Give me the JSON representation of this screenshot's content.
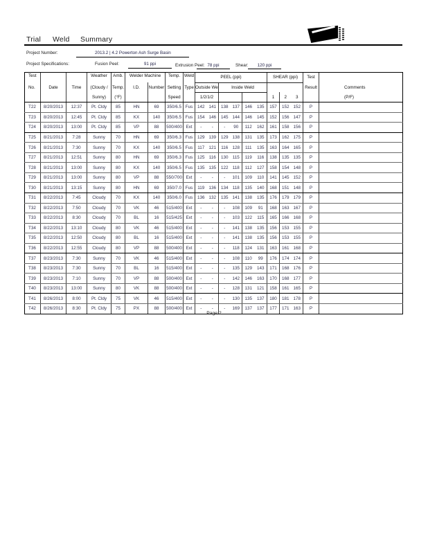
{
  "colors": {
    "ink": "#111111",
    "data_ink": "#30304f",
    "line": "#000000"
  },
  "report": {
    "title_words": [
      "Trial",
      "Weld",
      "Summary"
    ],
    "page_number": "Page 2"
  },
  "project": {
    "number_label": "Project Number:",
    "number_value": "2013.2 | 4.2 Powerton Ash Surge Basin",
    "specs_label": "Project Specifications:",
    "fusion_peel_label": "Fusion Peel:",
    "fusion_peel_value": "91 ppi",
    "extrusion_peel_label": "Extrusion Peel:",
    "extrusion_peel_value": "78 ppi",
    "shear_label": "Shear:",
    "shear_value": "120 ppi"
  },
  "table": {
    "header": {
      "r1": {
        "test": "Test",
        "weather": "Weather",
        "amb": "Amb.",
        "welder_machine": "Welder Machine",
        "temp": "Temp.",
        "weld": "Weld",
        "peel": "PEEL (ppi)",
        "shear": "SHEAR (ppi)",
        "test_result": "Test"
      },
      "r2": {
        "no": "No.",
        "date": "Date",
        "time": "Time",
        "weather": "(Cloudy /",
        "temp": "Temp.",
        "id": "I.D.",
        "number": "Number",
        "setting": "Setting",
        "type": "Type",
        "outside": "Outside Weld",
        "inside": "Inside Weld",
        "result": "Result",
        "comments": "Comments"
      },
      "r3": {
        "weather": "Sunny)",
        "f": "(°F)",
        "speed": "Speed",
        "peel_sub": "1/2/1/2",
        "s1": "1",
        "s2": "2",
        "s3": "3",
        "pf": "(P/F)"
      }
    },
    "columns": [
      "Test No.",
      "Date",
      "Time",
      "Weather",
      "Amb. Temp (°F)",
      "Welder I.D.",
      "Number",
      "Temp. Setting Speed",
      "Weld Type",
      "Peel Outside 1",
      "Peel Outside 2",
      "Peel Inside 1",
      "Peel Inside 2",
      "Peel Inside 3",
      "Peel Inside 4",
      "Shear 1",
      "Shear 2",
      "Shear 3",
      "Test Result (P/F)",
      "Comments"
    ],
    "rows": [
      [
        "T22",
        "8/20/2013",
        "12:37",
        "Pt. Cldy",
        "85",
        "HN",
        "69",
        "350/6.5",
        "Fus",
        "142",
        "141",
        "138",
        "137",
        "146",
        "135",
        "157",
        "152",
        "152",
        "P",
        ""
      ],
      [
        "T23",
        "8/20/2013",
        "12:45",
        "Pt. Cldy",
        "85",
        "KX",
        "140",
        "350/6.5",
        "Fus",
        "154",
        "146",
        "145",
        "144",
        "146",
        "145",
        "152",
        "156",
        "147",
        "P",
        ""
      ],
      [
        "T24",
        "8/20/2013",
        "13:00",
        "Pt. Cldy",
        "85",
        "VP",
        "88",
        "500/400",
        "Ext",
        "-",
        "-",
        "-",
        "90",
        "112",
        "162",
        "161",
        "158",
        "156",
        "P",
        ""
      ],
      [
        "T25",
        "8/21/2013",
        "7:28",
        "Sunny",
        "70",
        "HN",
        "69",
        "350/6.3",
        "Fus",
        "129",
        "139",
        "129",
        "138",
        "131",
        "135",
        "173",
        "162",
        "175",
        "P",
        ""
      ],
      [
        "T26",
        "8/21/2013",
        "7:30",
        "Sunny",
        "70",
        "KX",
        "140",
        "350/6.5",
        "Fus",
        "117",
        "121",
        "116",
        "128",
        "111",
        "135",
        "163",
        "164",
        "165",
        "P",
        ""
      ],
      [
        "T27",
        "8/21/2013",
        "12:51",
        "Sunny",
        "80",
        "HN",
        "69",
        "350/6.3",
        "Fus",
        "125",
        "116",
        "130",
        "115",
        "119",
        "116",
        "138",
        "135",
        "135",
        "P",
        ""
      ],
      [
        "T28",
        "8/21/2013",
        "13:00",
        "Sunny",
        "80",
        "KX",
        "140",
        "350/6.5",
        "Fus",
        "135",
        "135",
        "122",
        "118",
        "112",
        "127",
        "158",
        "154",
        "148",
        "P",
        ""
      ],
      [
        "T29",
        "8/21/2013",
        "13:00",
        "Sunny",
        "80",
        "VP",
        "88",
        "550/700",
        "Ext",
        "-",
        "-",
        "-",
        "101",
        "109",
        "110",
        "141",
        "145",
        "152",
        "P",
        ""
      ],
      [
        "T30",
        "8/21/2013",
        "13:15",
        "Sunny",
        "80",
        "HN",
        "69",
        "350/7.0",
        "Fus",
        "119",
        "136",
        "134",
        "118",
        "135",
        "140",
        "168",
        "151",
        "148",
        "P",
        ""
      ],
      [
        "T31",
        "8/22/2013",
        "7:45",
        "Cloudy",
        "70",
        "KX",
        "140",
        "350/6.0",
        "Fus",
        "136",
        "132",
        "135",
        "141",
        "138",
        "135",
        "176",
        "179",
        "179",
        "P",
        ""
      ],
      [
        "T32",
        "8/22/2013",
        "7:50",
        "Cloudy",
        "70",
        "VK",
        "46",
        "515/400",
        "Ext",
        "-",
        "-",
        "-",
        "108",
        "109",
        "91",
        "168",
        "163",
        "167",
        "P",
        ""
      ],
      [
        "T33",
        "8/22/2013",
        "8:30",
        "Cloudy",
        "70",
        "BL",
        "16",
        "515/425",
        "Ext",
        "-",
        "-",
        "-",
        "103",
        "122",
        "115",
        "165",
        "166",
        "168",
        "P",
        ""
      ],
      [
        "T34",
        "8/22/2013",
        "13:10",
        "Cloudy",
        "80",
        "VK",
        "46",
        "515/400",
        "Ext",
        "-",
        "-",
        "-",
        "141",
        "138",
        "135",
        "156",
        "153",
        "155",
        "P",
        ""
      ],
      [
        "T35",
        "8/22/2013",
        "12:50",
        "Cloudy",
        "80",
        "BL",
        "16",
        "515/400",
        "Ext",
        "-",
        "-",
        "-",
        "141",
        "138",
        "135",
        "156",
        "153",
        "155",
        "P",
        ""
      ],
      [
        "T36",
        "8/22/2013",
        "12:55",
        "Cloudy",
        "80",
        "VP",
        "88",
        "500/400",
        "Ext",
        "-",
        "-",
        "-",
        "118",
        "124",
        "131",
        "163",
        "161",
        "168",
        "P",
        ""
      ],
      [
        "T37",
        "8/23/2013",
        "7:30",
        "Sunny",
        "70",
        "VK",
        "46",
        "515/400",
        "Ext",
        "-",
        "-",
        "-",
        "108",
        "110",
        "99",
        "176",
        "174",
        "174",
        "P",
        ""
      ],
      [
        "T38",
        "8/23/2013",
        "7:30",
        "Sunny",
        "70",
        "BL",
        "16",
        "515/400",
        "Ext",
        "-",
        "-",
        "-",
        "135",
        "129",
        "143",
        "171",
        "168",
        "176",
        "P",
        ""
      ],
      [
        "T39",
        "8/23/2013",
        "7:10",
        "Sunny",
        "70",
        "VP",
        "88",
        "500/400",
        "Ext",
        "-",
        "-",
        "-",
        "142",
        "146",
        "163",
        "170",
        "168",
        "177",
        "P",
        ""
      ],
      [
        "T40",
        "8/23/2013",
        "13:00",
        "Sunny",
        "80",
        "VK",
        "88",
        "500/400",
        "Ext",
        "-",
        "-",
        "-",
        "128",
        "131",
        "121",
        "158",
        "161",
        "165",
        "P",
        ""
      ],
      [
        "T41",
        "8/26/2013",
        "8:00",
        "Pt. Cldy",
        "75",
        "VK",
        "46",
        "515/400",
        "Ext",
        "-",
        "-",
        "-",
        "130",
        "135",
        "137",
        "180",
        "181",
        "178",
        "P",
        ""
      ],
      [
        "T42",
        "8/26/2013",
        "8:30",
        "Pt. Cldy",
        "75",
        "PX",
        "88",
        "500/400",
        "Ext",
        "-",
        "-",
        "-",
        "169",
        "137",
        "137",
        "177",
        "171",
        "163",
        "P",
        ""
      ]
    ],
    "thick_after_ids": [
      "T24",
      "T30",
      "T36",
      "T40",
      "T42"
    ]
  }
}
